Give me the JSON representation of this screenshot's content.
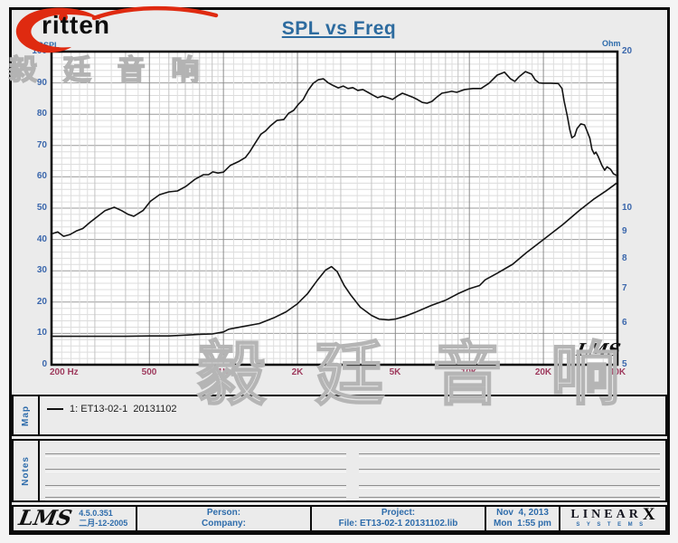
{
  "logo": {
    "text": "ritten"
  },
  "header": {
    "title": "SPL vs Freq"
  },
  "watermark": {
    "top_left": "毅 廷 音 响",
    "plot": "毅 廷 音 响"
  },
  "plot": {
    "lms_badge": "LMS"
  },
  "axes": {
    "left_unit": "dBSPL",
    "right_unit": "Ohm"
  },
  "map_panel": {
    "label": "Map",
    "legend_text": "1: ET13-02-1  20131102"
  },
  "notes_panel": {
    "label": "Notes"
  },
  "footer": {
    "lms_logo": "LMS",
    "version": "4.5.0.351",
    "version_date": "二月-12-2005",
    "person_label": "Person:",
    "company_label": "Company:",
    "project_label": "Project:",
    "file_label": "File: ET13-02-1 20131102.lib",
    "date": "Nov  4, 2013",
    "time": "Mon  1:55 pm",
    "brand_name": "LINEAR",
    "brand_x": "X",
    "brand_sub": "SYSTEMS"
  },
  "chart_data": {
    "type": "line",
    "title": "SPL vs Freq",
    "grid": true,
    "legend": "1: ET13-02-1  20131102",
    "legend_position": "map-panel-below-chart",
    "x_axis": {
      "scale": "log",
      "min": 200,
      "max": 40000,
      "unit": "Hz",
      "ticks": [
        {
          "value": 200,
          "label": "200 Hz"
        },
        {
          "value": 500,
          "label": "500"
        },
        {
          "value": 1000,
          "label": "1K"
        },
        {
          "value": 2000,
          "label": "2K"
        },
        {
          "value": 5000,
          "label": "5K"
        },
        {
          "value": 10000,
          "label": "10K"
        },
        {
          "value": 20000,
          "label": "20K"
        },
        {
          "value": 40000,
          "label": "40K"
        }
      ]
    },
    "y_left_axis": {
      "label": "dBSPL",
      "scale": "linear",
      "min": 0,
      "max": 100,
      "ticks": [
        100,
        90,
        80,
        70,
        60,
        50,
        40,
        30,
        20,
        10,
        0
      ],
      "minor_step": 2
    },
    "y_right_axis": {
      "label": "Ohm",
      "scale": "log",
      "min": 5,
      "max": 20,
      "ticks": [
        20,
        10,
        9,
        8,
        7,
        6,
        5
      ]
    },
    "series": [
      {
        "name": "SPL",
        "axis": "left",
        "color": "#141414",
        "points": [
          [
            200,
            41.8
          ],
          [
            212,
            42.4
          ],
          [
            224,
            41.0
          ],
          [
            238,
            41.6
          ],
          [
            252,
            42.7
          ],
          [
            268,
            43.5
          ],
          [
            286,
            45.4
          ],
          [
            306,
            47.2
          ],
          [
            330,
            49.2
          ],
          [
            360,
            50.3
          ],
          [
            386,
            49.2
          ],
          [
            410,
            48.0
          ],
          [
            432,
            47.4
          ],
          [
            455,
            48.5
          ],
          [
            472,
            49.3
          ],
          [
            505,
            52.2
          ],
          [
            550,
            54.3
          ],
          [
            600,
            55.2
          ],
          [
            650,
            55.5
          ],
          [
            705,
            57.0
          ],
          [
            765,
            59.2
          ],
          [
            830,
            60.7
          ],
          [
            870,
            60.7
          ],
          [
            905,
            61.6
          ],
          [
            950,
            61.2
          ],
          [
            1000,
            61.5
          ],
          [
            1065,
            63.6
          ],
          [
            1160,
            65.0
          ],
          [
            1230,
            66.2
          ],
          [
            1280,
            68.0
          ],
          [
            1340,
            70.5
          ],
          [
            1420,
            73.6
          ],
          [
            1480,
            74.6
          ],
          [
            1550,
            76.2
          ],
          [
            1650,
            78.0
          ],
          [
            1760,
            78.3
          ],
          [
            1840,
            80.3
          ],
          [
            1930,
            81.2
          ],
          [
            2020,
            83.2
          ],
          [
            2110,
            84.7
          ],
          [
            2210,
            87.6
          ],
          [
            2320,
            89.9
          ],
          [
            2430,
            91.0
          ],
          [
            2550,
            91.3
          ],
          [
            2670,
            90.0
          ],
          [
            2790,
            89.2
          ],
          [
            2930,
            88.4
          ],
          [
            3070,
            89.0
          ],
          [
            3210,
            88.2
          ],
          [
            3360,
            88.5
          ],
          [
            3520,
            87.6
          ],
          [
            3690,
            87.9
          ],
          [
            3870,
            87.0
          ],
          [
            4050,
            86.1
          ],
          [
            4240,
            85.3
          ],
          [
            4440,
            85.8
          ],
          [
            4650,
            85.3
          ],
          [
            4870,
            84.7
          ],
          [
            5100,
            85.8
          ],
          [
            5340,
            86.7
          ],
          [
            5600,
            86.1
          ],
          [
            5860,
            85.5
          ],
          [
            6140,
            84.7
          ],
          [
            6430,
            83.8
          ],
          [
            6730,
            83.5
          ],
          [
            7050,
            84.1
          ],
          [
            7380,
            85.5
          ],
          [
            7730,
            86.7
          ],
          [
            8100,
            87.0
          ],
          [
            8480,
            87.3
          ],
          [
            8880,
            87.0
          ],
          [
            9580,
            87.9
          ],
          [
            10340,
            88.2
          ],
          [
            11150,
            88.2
          ],
          [
            12030,
            89.9
          ],
          [
            12980,
            92.5
          ],
          [
            13900,
            93.4
          ],
          [
            14700,
            91.3
          ],
          [
            15300,
            90.5
          ],
          [
            15900,
            91.9
          ],
          [
            16900,
            93.6
          ],
          [
            17900,
            92.8
          ],
          [
            18500,
            91.0
          ],
          [
            19200,
            90.0
          ],
          [
            19900,
            89.9
          ],
          [
            21400,
            89.9
          ],
          [
            23000,
            89.8
          ],
          [
            23800,
            88.2
          ],
          [
            24300,
            84.1
          ],
          [
            25000,
            79.5
          ],
          [
            25600,
            75.1
          ],
          [
            26100,
            72.5
          ],
          [
            26800,
            73.1
          ],
          [
            27400,
            75.4
          ],
          [
            28400,
            76.9
          ],
          [
            29400,
            76.6
          ],
          [
            30000,
            74.9
          ],
          [
            30900,
            72.3
          ],
          [
            31500,
            68.8
          ],
          [
            32200,
            67.3
          ],
          [
            32700,
            67.9
          ],
          [
            33400,
            66.5
          ],
          [
            34600,
            63.6
          ],
          [
            35500,
            62.1
          ],
          [
            36300,
            63.2
          ],
          [
            37500,
            62.4
          ],
          [
            38500,
            61.0
          ],
          [
            40000,
            60.3
          ]
        ]
      },
      {
        "name": "Impedance",
        "axis": "right",
        "color": "#141414",
        "points": [
          [
            200,
            5.67
          ],
          [
            300,
            5.67
          ],
          [
            400,
            5.67
          ],
          [
            500,
            5.68
          ],
          [
            600,
            5.68
          ],
          [
            700,
            5.7
          ],
          [
            800,
            5.72
          ],
          [
            900,
            5.73
          ],
          [
            1000,
            5.78
          ],
          [
            1050,
            5.85
          ],
          [
            1200,
            5.92
          ],
          [
            1400,
            6.0
          ],
          [
            1600,
            6.15
          ],
          [
            1800,
            6.32
          ],
          [
            2000,
            6.55
          ],
          [
            2200,
            6.85
          ],
          [
            2400,
            7.25
          ],
          [
            2600,
            7.6
          ],
          [
            2750,
            7.72
          ],
          [
            2900,
            7.55
          ],
          [
            3100,
            7.1
          ],
          [
            3300,
            6.8
          ],
          [
            3600,
            6.45
          ],
          [
            4000,
            6.22
          ],
          [
            4300,
            6.12
          ],
          [
            4700,
            6.1
          ],
          [
            5000,
            6.12
          ],
          [
            5500,
            6.2
          ],
          [
            6000,
            6.3
          ],
          [
            7000,
            6.5
          ],
          [
            8000,
            6.65
          ],
          [
            9000,
            6.85
          ],
          [
            10000,
            7.0
          ],
          [
            11000,
            7.1
          ],
          [
            11600,
            7.28
          ],
          [
            13000,
            7.5
          ],
          [
            15000,
            7.8
          ],
          [
            17000,
            8.2
          ],
          [
            20000,
            8.7
          ],
          [
            24000,
            9.3
          ],
          [
            28000,
            9.9
          ],
          [
            32000,
            10.4
          ],
          [
            36000,
            10.8
          ],
          [
            40000,
            11.2
          ]
        ]
      }
    ]
  }
}
